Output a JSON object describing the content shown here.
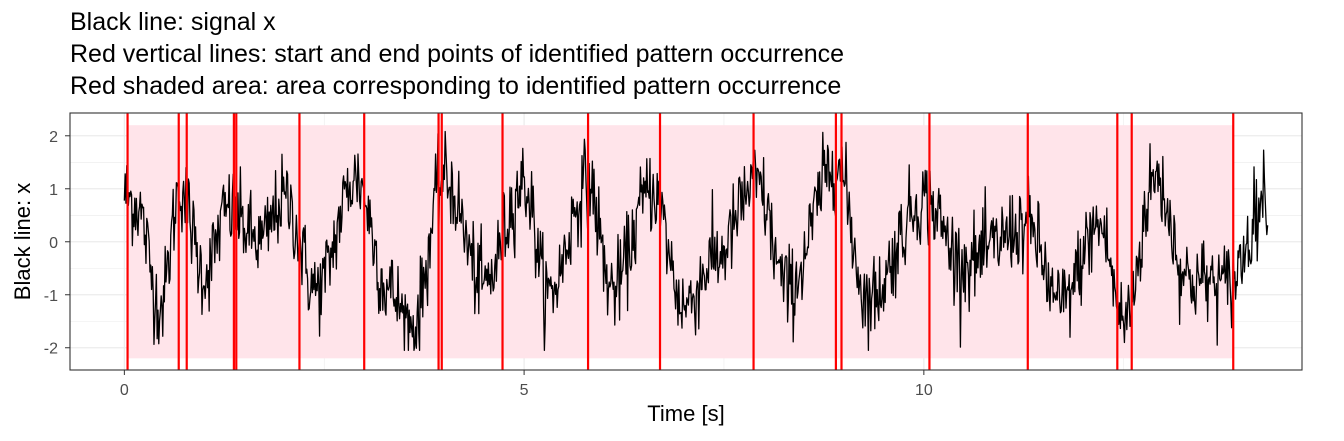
{
  "chart_data": {
    "type": "line",
    "title_lines": [
      "Black line: signal x",
      "Red vertical lines: start and end points of identified pattern occurrence",
      "Red shaded area: area corresponding to identified pattern occurrence"
    ],
    "xlabel": "Time [s]",
    "ylabel": "Black line: x",
    "xlim": [
      -0.68,
      14.73
    ],
    "ylim": [
      -2.42,
      2.43
    ],
    "x_ticks": [
      0,
      5,
      10
    ],
    "x_tick_labels": [
      "0",
      "5",
      "10"
    ],
    "y_ticks": [
      -2,
      -1,
      0,
      1,
      2
    ],
    "y_tick_labels": [
      "-2",
      "-1",
      "0",
      "1",
      "2"
    ],
    "grid": true,
    "legend": "none",
    "colors": {
      "signal": "#000000",
      "boundary": "#ff0000",
      "shade": "#ffe4ea",
      "grid": "#ebebeb",
      "panel_border": "#333333"
    },
    "signal": {
      "name": "signal x",
      "x_range": [
        0,
        14.3
      ],
      "n_points": 1430,
      "approx_period_s": 1.15,
      "anchor_points": {
        "x": [
          0,
          0.15,
          0.45,
          0.7,
          1.0,
          1.3,
          1.7,
          2.0,
          2.4,
          2.9,
          3.3,
          3.6,
          4.0,
          4.5,
          5.0,
          5.3,
          5.8,
          6.1,
          6.6,
          7.0,
          7.4,
          7.9,
          8.3,
          8.9,
          9.3,
          10.0,
          10.5,
          11.3,
          11.7,
          12.2,
          12.5,
          12.9,
          13.3,
          13.8,
          14.3
        ],
        "y": [
          0.9,
          0.7,
          -1.2,
          1.0,
          -0.6,
          0.6,
          0.0,
          0.8,
          -0.9,
          1.2,
          -0.9,
          -1.6,
          1.2,
          -0.8,
          1.1,
          -1.0,
          1.1,
          -0.9,
          1.0,
          -1.2,
          -0.3,
          1.1,
          -0.9,
          1.5,
          -1.1,
          0.8,
          -0.4,
          0.3,
          -1.2,
          0.3,
          -1.5,
          1.2,
          -0.7,
          -0.8,
          0.9
        ]
      },
      "noise_amplitude": 0.4,
      "y_min": -2.05,
      "y_max": 2.08
    },
    "pattern_boundaries_s": [
      0.04,
      0.68,
      0.78,
      1.37,
      1.4,
      2.19,
      3.0,
      3.93,
      3.97,
      4.73,
      5.8,
      6.7,
      7.87,
      8.9,
      8.97,
      10.07,
      11.3,
      12.42,
      12.6,
      13.87
    ],
    "shaded_regions_s": [
      [
        0.04,
        13.87
      ]
    ],
    "shade_y_range": [
      -2.2,
      2.2
    ]
  }
}
